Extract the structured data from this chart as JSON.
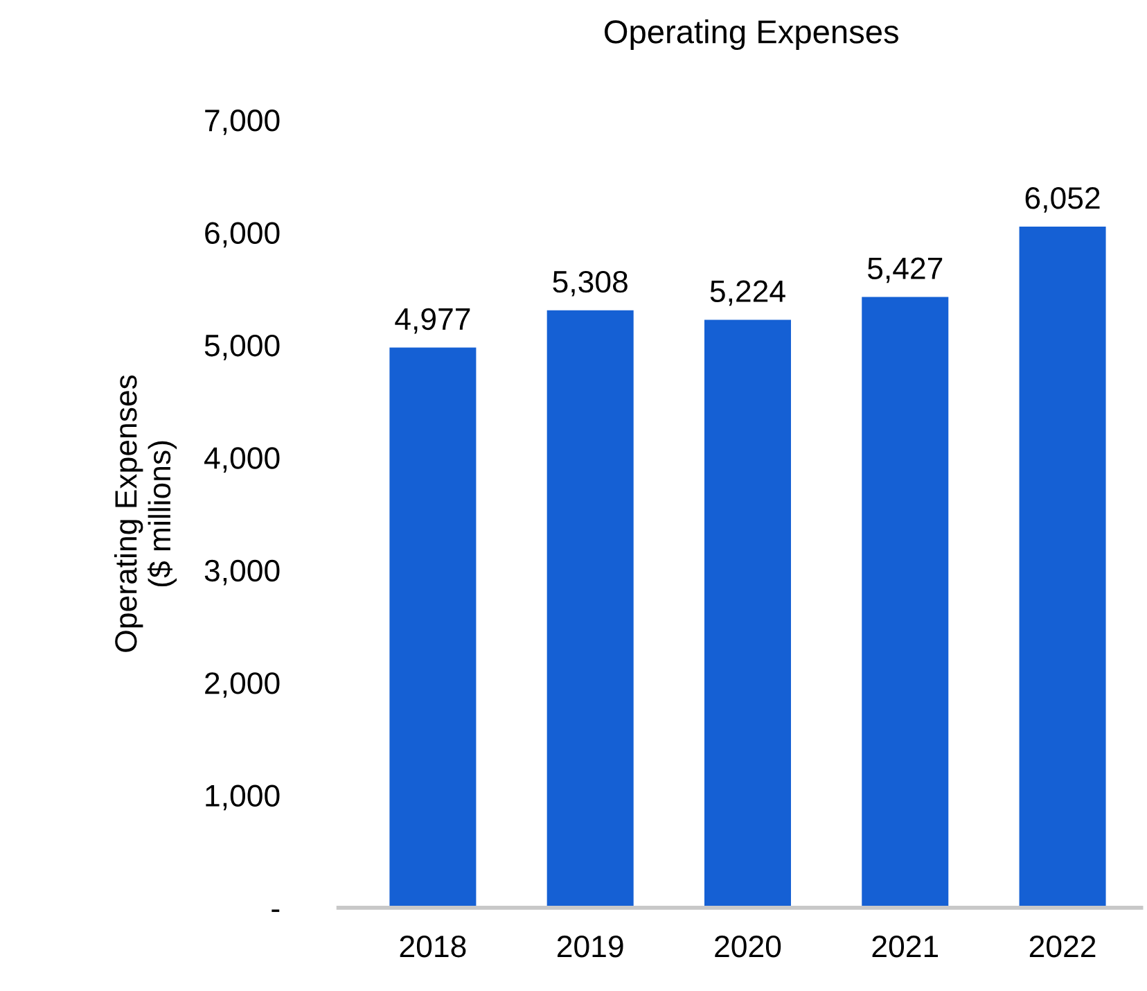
{
  "chart_data": {
    "type": "bar",
    "title": "Operating Expenses",
    "ylabel": "Operating Expenses\n($ millions)",
    "categories": [
      "2018",
      "2019",
      "2020",
      "2021",
      "2022"
    ],
    "values": [
      4977,
      5308,
      5224,
      5427,
      6052
    ],
    "value_labels": [
      "4,977",
      "5,308",
      "5,224",
      "5,427",
      "6,052"
    ],
    "color": "#1560d4",
    "ylim": [
      0,
      7000
    ],
    "yticks": [
      {
        "value": 0,
        "label": "-"
      },
      {
        "value": 1000,
        "label": "1,000"
      },
      {
        "value": 2000,
        "label": "2,000"
      },
      {
        "value": 3000,
        "label": "3,000"
      },
      {
        "value": 4000,
        "label": "4,000"
      },
      {
        "value": 5000,
        "label": "5,000"
      },
      {
        "value": 6000,
        "label": "6,000"
      },
      {
        "value": 7000,
        "label": "7,000"
      }
    ],
    "grid": false
  }
}
